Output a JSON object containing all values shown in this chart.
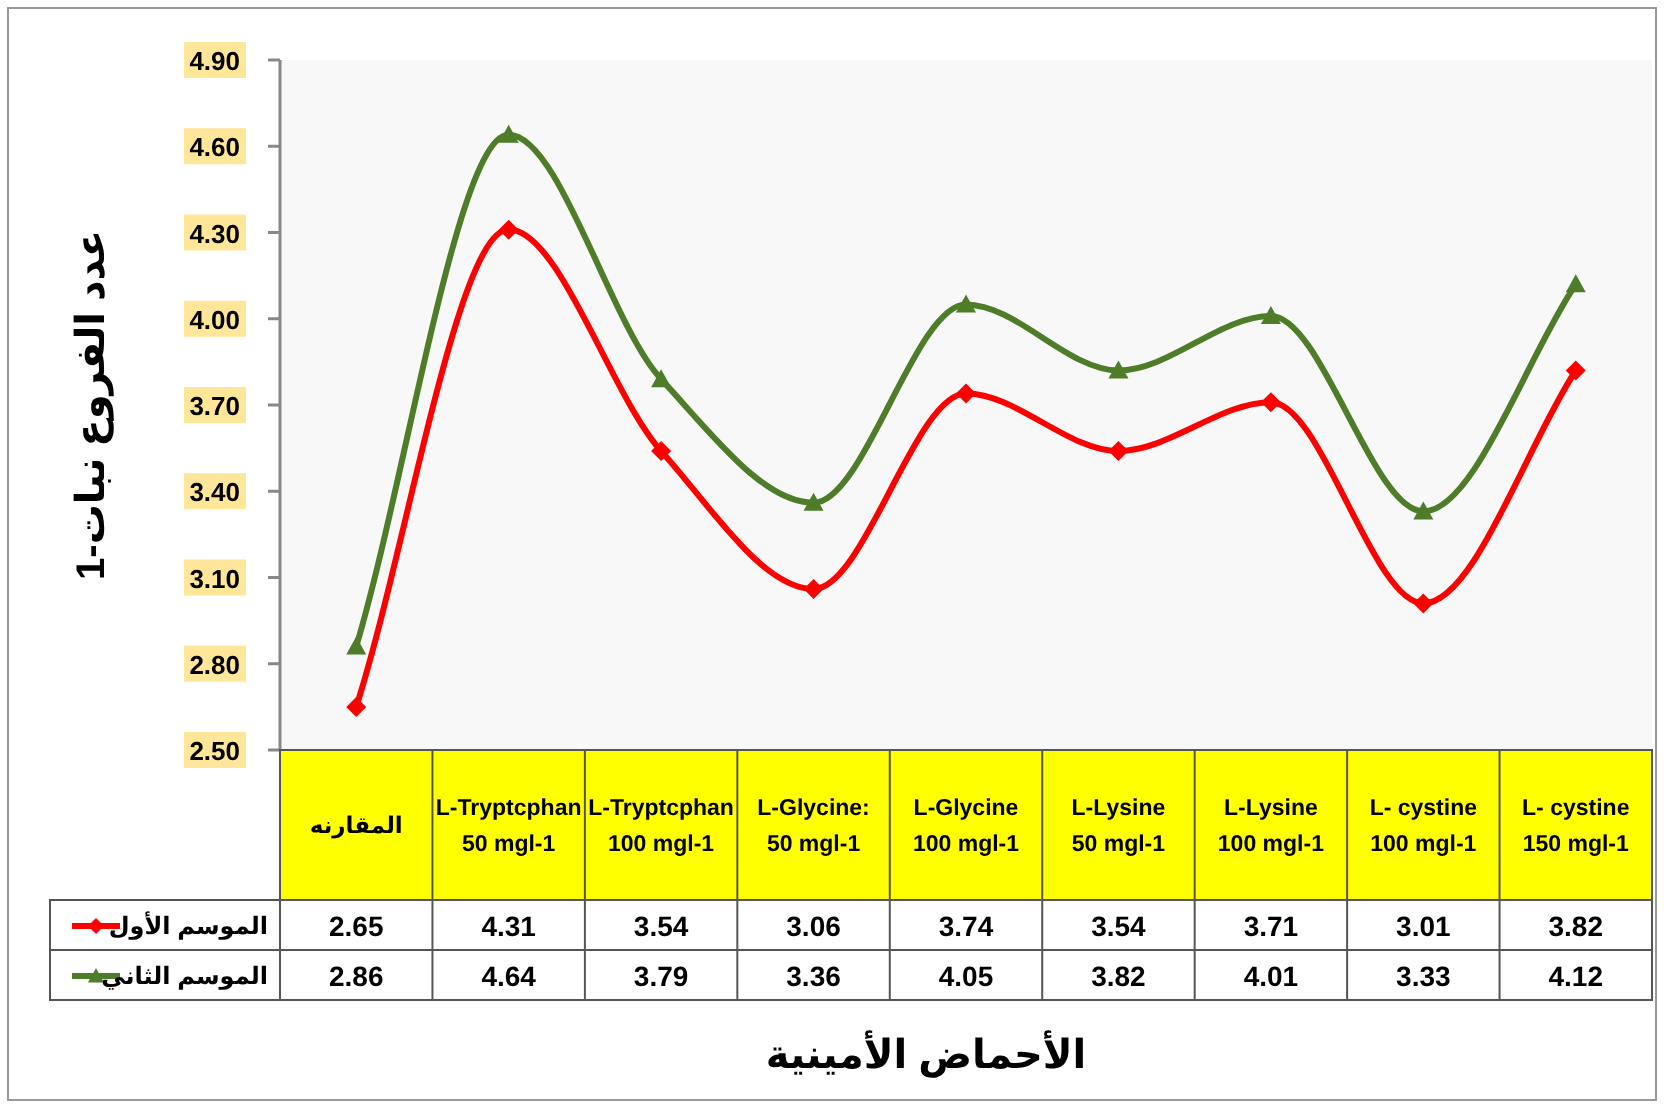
{
  "chart_data": {
    "type": "line",
    "ylabel": "عدد الفروع نبات-1",
    "xlabel": "الأحماض الأمينية",
    "categories": [
      "المقارنه",
      "L-Tryptcphan 50 mgl-1",
      "L-Tryptcphan 100 mgl-1",
      "L-Glycine: 50 mgl-1",
      "L-Glycine 100 mgl-1",
      "L-Lysine 50 mgl-1",
      "L-Lysine 100 mgl-1",
      "L- cystine 100 mgl-1",
      "L- cystine 150 mgl-1"
    ],
    "series": [
      {
        "name": "الموسم الأول",
        "color": "#ff0000",
        "marker": "diamond",
        "values": [
          2.65,
          4.31,
          3.54,
          3.06,
          3.74,
          3.54,
          3.71,
          3.01,
          3.82
        ]
      },
      {
        "name": "الموسم الثاني",
        "color": "#4e7d2a",
        "marker": "triangle",
        "values": [
          2.86,
          4.64,
          3.79,
          3.36,
          4.05,
          3.82,
          4.01,
          3.33,
          4.12
        ]
      }
    ],
    "ylim": [
      2.5,
      4.9
    ],
    "yticks": [
      {
        "value": 2.5,
        "label": "2.50"
      },
      {
        "value": 2.8,
        "label": "2.80"
      },
      {
        "value": 3.1,
        "label": "3.10"
      },
      {
        "value": 3.4,
        "label": "3.40"
      },
      {
        "value": 3.7,
        "label": "3.70"
      },
      {
        "value": 4.0,
        "label": "4.00"
      },
      {
        "value": 4.3,
        "label": "4.30"
      },
      {
        "value": 4.6,
        "label": "4.60"
      },
      {
        "value": 4.9,
        "label": "4.90"
      }
    ],
    "data_labels": true,
    "legend": "bottom left",
    "grid": false
  }
}
